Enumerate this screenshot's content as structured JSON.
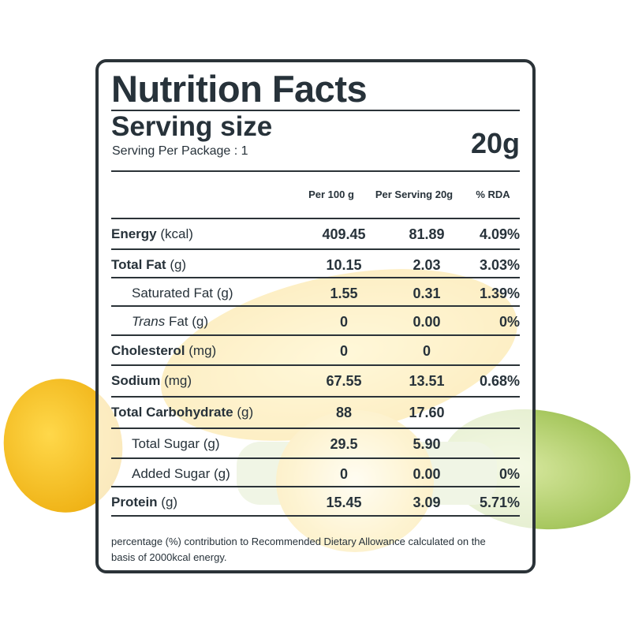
{
  "label": {
    "title": "Nutrition Facts",
    "serving_size_label": "Serving size",
    "serving_size_value": "20g",
    "servings_per_package": "Serving Per Package : 1",
    "columns": [
      "Per 100 g",
      "Per Serving 20g",
      "% RDA"
    ],
    "rows": [
      {
        "name": "Energy",
        "unit": "(kcal)",
        "bold": true,
        "indent": false,
        "per100": "409.45",
        "perServing": "81.89",
        "rda": "4.09%"
      },
      {
        "name": "Total Fat",
        "unit": "(g)",
        "bold": true,
        "indent": false,
        "per100": "10.15",
        "perServing": "2.03",
        "rda": "3.03%"
      },
      {
        "name": "Saturated Fat",
        "unit": "(g)",
        "bold": false,
        "indent": true,
        "per100": "1.55",
        "perServing": "0.31",
        "rda": "1.39%"
      },
      {
        "name": "Trans",
        "unit": "Fat (g)",
        "bold": false,
        "italic": true,
        "indent": true,
        "per100": "0",
        "perServing": "0.00",
        "rda": "0%"
      },
      {
        "name": "Cholesterol",
        "unit": "(mg)",
        "bold": true,
        "indent": false,
        "per100": "0",
        "perServing": "0",
        "rda": ""
      },
      {
        "name": "Sodium",
        "unit": "(mg)",
        "bold": true,
        "indent": false,
        "per100": "67.55",
        "perServing": "13.51",
        "rda": "0.68%"
      },
      {
        "name": "Total Carbohydrate",
        "unit": "(g)",
        "bold": true,
        "indent": false,
        "per100": "88",
        "perServing": "17.60",
        "rda": ""
      },
      {
        "name": "Total Sugar",
        "unit": "(g)",
        "bold": false,
        "indent": true,
        "per100": "29.5",
        "perServing": "5.90",
        "rda": ""
      },
      {
        "name": "Added Sugar",
        "unit": "(g)",
        "bold": false,
        "indent": true,
        "per100": "0",
        "perServing": "0.00",
        "rda": "0%"
      },
      {
        "name": "Protein",
        "unit": "(g)",
        "bold": true,
        "indent": false,
        "per100": "15.45",
        "perServing": "3.09",
        "rda": "5.71%"
      }
    ],
    "footnote": "percentage (%) contribution to Recommended Dietary Allowance calculated on the basis of 2000kcal energy."
  },
  "colors": {
    "text": "#27323a",
    "border": "#2b3338",
    "corn": "#f6c530",
    "husk": "#a8c860"
  }
}
